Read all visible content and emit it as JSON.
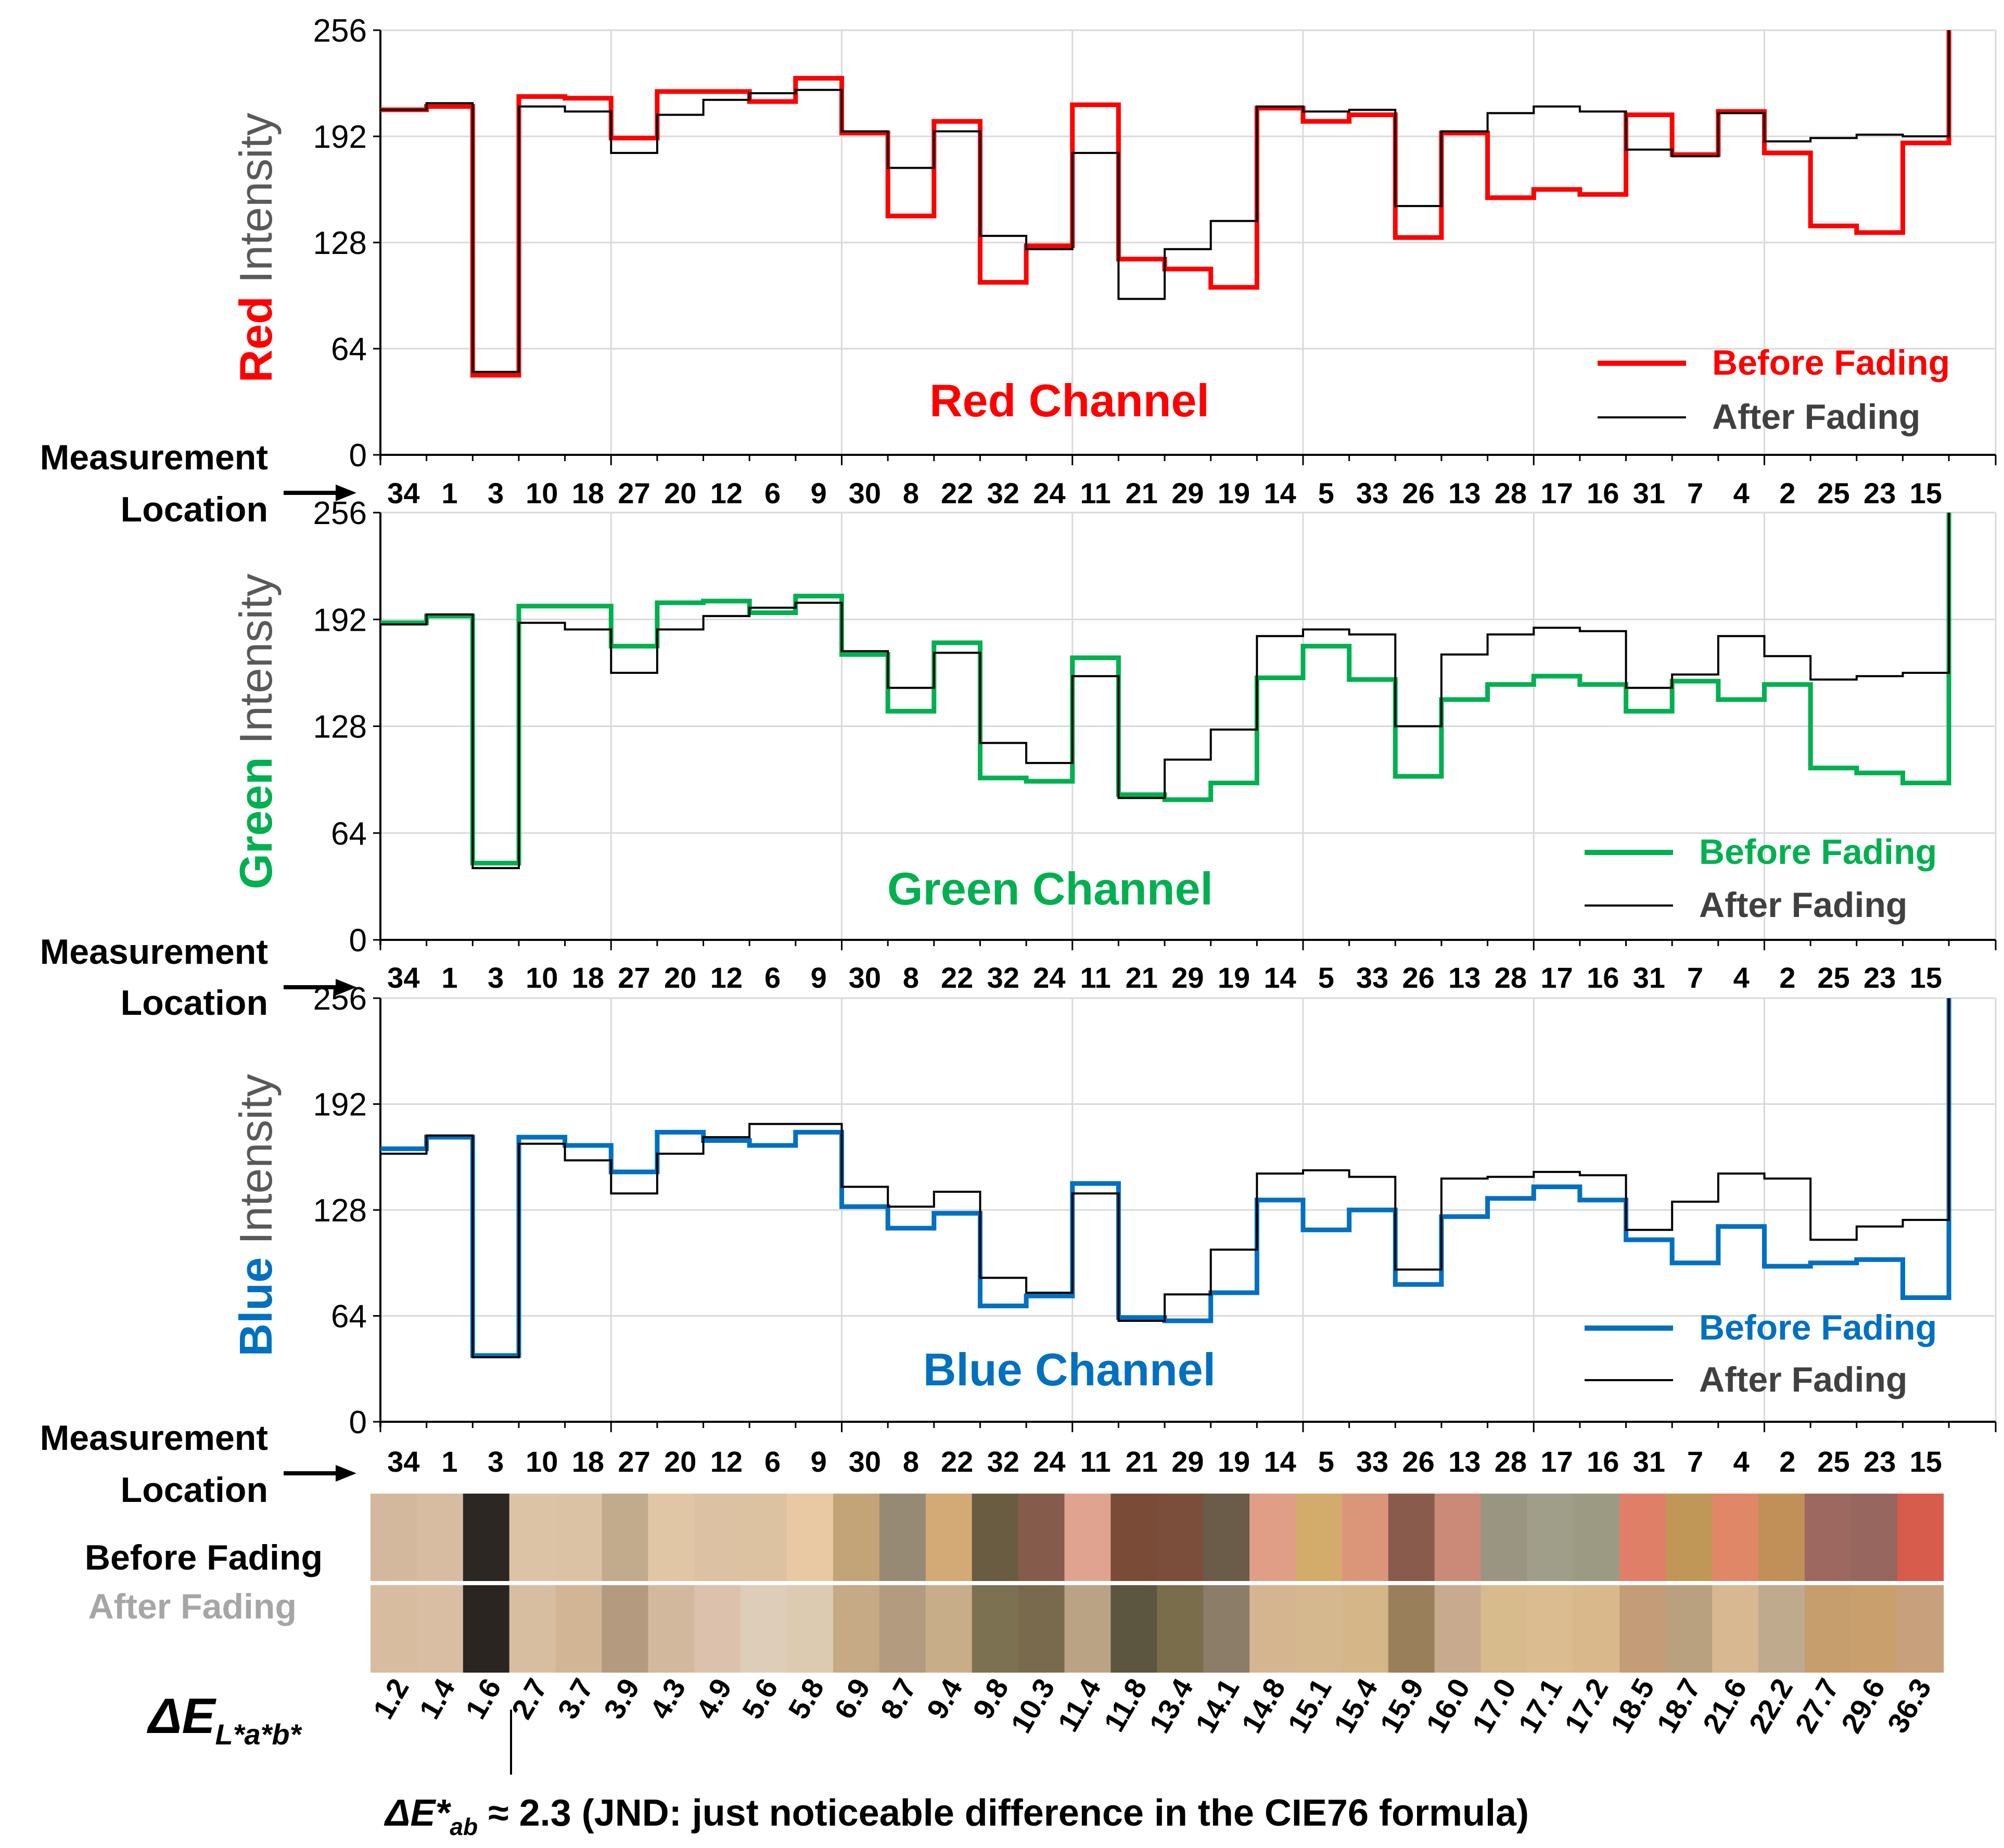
{
  "chart_data": {
    "type": "line",
    "step": true,
    "location_label": [
      "Measurement",
      "Location"
    ],
    "locations": [
      "34",
      "1",
      "3",
      "10",
      "18",
      "27",
      "20",
      "12",
      "6",
      "9",
      "30",
      "8",
      "22",
      "32",
      "24",
      "11",
      "21",
      "29",
      "19",
      "14",
      "5",
      "33",
      "26",
      "13",
      "28",
      "17",
      "16",
      "31",
      "7",
      "4",
      "2",
      "25",
      "23",
      "15"
    ],
    "ylim": [
      0,
      256
    ],
    "yticks": [
      "0",
      "64",
      "128",
      "192",
      "256"
    ],
    "grid": true,
    "legend_position": "bottom-right",
    "panels": [
      {
        "id": "red",
        "title": "Red Channel",
        "ylabel_color_word": "Red",
        "ylabel_rest": " Intensity",
        "color": "#ff0000",
        "series": [
          {
            "name": "Before Fading",
            "values": [
              208,
              210,
              48,
              216,
              215,
              191,
              219,
              219,
              213,
              227,
              194,
              144,
              201,
              104,
              126,
              211,
              118,
              112,
              101,
              209,
              201,
              205,
              131,
              194,
              155,
              160,
              157,
              205,
              181,
              207,
              182,
              138,
              134,
              188
            ]
          },
          {
            "name": "After Fading",
            "values": [
              208,
              212,
              50,
              210,
              207,
              182,
              205,
              214,
              218,
              220,
              195,
              173,
              195,
              132,
              124,
              182,
              94,
              124,
              141,
              210,
              207,
              208,
              150,
              195,
              206,
              210,
              207,
              184,
              180,
              206,
              189,
              191,
              193,
              192
            ]
          }
        ]
      },
      {
        "id": "green",
        "title": "Green Channel",
        "ylabel_color_word": "Green",
        "ylabel_rest": " Intensity",
        "color": "#00b050",
        "series": [
          {
            "name": "Before Fading",
            "values": [
              190,
              194,
              46,
              200,
              200,
              176,
              202,
              203,
              196,
              206,
              171,
              137,
              178,
              97,
              95,
              169,
              87,
              84,
              94,
              157,
              176,
              156,
              98,
              144,
              153,
              158,
              153,
              137,
              155,
              144,
              153,
              103,
              100,
              94
            ]
          },
          {
            "name": "After Fading",
            "values": [
              189,
              195,
              43,
              190,
              186,
              160,
              186,
              194,
              199,
              202,
              173,
              151,
              172,
              118,
              106,
              158,
              85,
              108,
              126,
              182,
              186,
              183,
              128,
              171,
              183,
              187,
              185,
              151,
              159,
              182,
              170,
              156,
              158,
              160
            ]
          }
        ]
      },
      {
        "id": "blue",
        "title": "Blue Channel",
        "ylabel_color_word": "Blue",
        "ylabel_rest": " Intensity",
        "color": "#0070c0",
        "series": [
          {
            "name": "Before Fading",
            "values": [
              165,
              172,
              40,
              172,
              167,
              151,
              175,
              170,
              167,
              175,
              130,
              117,
              126,
              70,
              76,
              144,
              63,
              61,
              78,
              134,
              116,
              128,
              83,
              124,
              135,
              142,
              134,
              110,
              96,
              118,
              94,
              96,
              98,
              75
            ]
          },
          {
            "name": "After Fading",
            "values": [
              162,
              173,
              39,
              168,
              158,
              138,
              162,
              172,
              180,
              180,
              142,
              130,
              139,
              87,
              78,
              138,
              61,
              77,
              104,
              150,
              152,
              148,
              92,
              147,
              148,
              151,
              149,
              116,
              133,
              150,
              147,
              110,
              118,
              122
            ]
          }
        ]
      }
    ],
    "end_spike_value": 256,
    "swatches": {
      "before_label": "Before Fading",
      "after_label": "After Fading",
      "before": [
        "#d4b89e",
        "#d8bca2",
        "#2c2722",
        "#ddc3a6",
        "#dcc2a4",
        "#c2ab8c",
        "#e1c6a5",
        "#dcc1a2",
        "#ddc2a2",
        "#e9c9a4",
        "#c3a478",
        "#978a75",
        "#d3a975",
        "#6a5c40",
        "#855c4b",
        "#e0a38f",
        "#7a4c38",
        "#7b4d3b",
        "#6a5c48",
        "#e09e86",
        "#d3ac6c",
        "#db9679",
        "#885b4d",
        "#cb8a77",
        "#9a9580",
        "#a09e88",
        "#9d9a84",
        "#e07f68",
        "#c19758",
        "#e08768",
        "#c18f58",
        "#9c6860",
        "#96665f",
        "#d85c4c"
      ],
      "after": [
        "#d7bc9f",
        "#d9bea4",
        "#2b2521",
        "#d8bea0",
        "#d2b595",
        "#b49b7f",
        "#d2b89c",
        "#dcc2ac",
        "#ddcdb9",
        "#dccbb0",
        "#c6a985",
        "#b39b80",
        "#c8ae88",
        "#7c7150",
        "#7a6a4d",
        "#baa385",
        "#5c5540",
        "#7a6d4c",
        "#8b7d68",
        "#d5b490",
        "#d6b88e",
        "#d4b688",
        "#9a7f5b",
        "#c8aa8e",
        "#d8bb8d",
        "#dbbb90",
        "#d9b98c",
        "#c49c78",
        "#b9a07e",
        "#d8b891",
        "#c0aa8e",
        "#c69e6e",
        "#c9a06d",
        "#c8a07c"
      ]
    },
    "deltaE": {
      "label_main": "ΔE",
      "label_sub": "L*a*b*",
      "values": [
        "1.2",
        "1.4",
        "1.6",
        "2.7",
        "3.7",
        "3.9",
        "4.3",
        "4.9",
        "5.6",
        "5.8",
        "6.9",
        "8.7",
        "9.4",
        "9.8",
        "10.3",
        "11.4",
        "11.8",
        "13.4",
        "14.1",
        "14.8",
        "15.1",
        "15.4",
        "15.9",
        "16.0",
        "17.0",
        "17.1",
        "17.2",
        "18.5",
        "18.7",
        "21.6",
        "22.2",
        "27.7",
        "29.6",
        "36.3"
      ],
      "jnd_prefix": "ΔE*",
      "jnd_sub": "ab",
      "jnd_text": " ≈ 2.3 (JND: just noticeable difference in the CIE76 formula)"
    }
  }
}
